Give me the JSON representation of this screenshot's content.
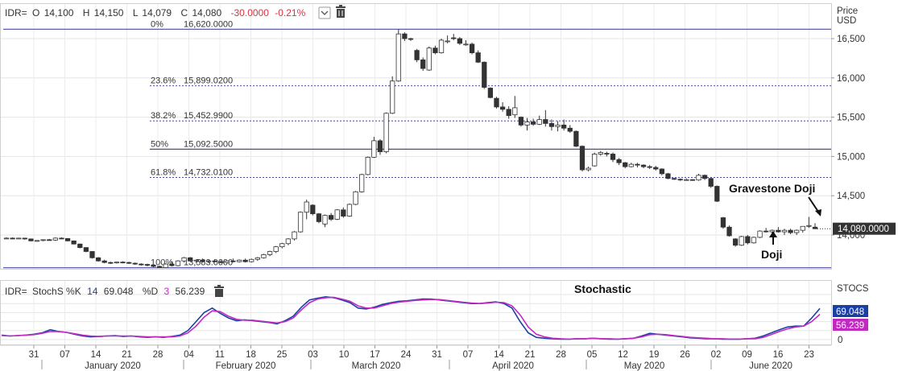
{
  "header": {
    "symbol": "IDR=",
    "o_label": "O",
    "o_value": "14,100",
    "h_label": "H",
    "h_value": "14,150",
    "l_label": "L",
    "l_value": "14,079",
    "c_label": "C",
    "c_value": "14,080",
    "change": "-30.0000",
    "change_pct": "-0.21%"
  },
  "price_axis": {
    "title": "Price",
    "unit": "USD"
  },
  "last_price_label": "14,080.0000",
  "annotations": {
    "gravestone": "Gravestone Doji",
    "doji": "Doji",
    "stochastic": "Stochastic"
  },
  "stoch_header": {
    "symbol": "IDR=",
    "name": "StochS %K",
    "k_period": "14",
    "k_value": "69.048",
    "d_label": "%D",
    "d_period": "3",
    "d_value": "56.239",
    "axis_title": "STOCS"
  },
  "colors": {
    "up": "#ffffff",
    "down": "#333333",
    "fib_line": "#4a4aa0",
    "k_line": "#1a3fa6",
    "d_line": "#c12ac1",
    "neg": "#d9333f"
  },
  "chart_data": [
    {
      "type": "candlestick",
      "title": "",
      "xlabel": "",
      "ylabel": "Price USD",
      "ylim": [
        13400,
        16800
      ],
      "yticks": [
        "16,500",
        "16,000",
        "15,500",
        "15,000",
        "14,500",
        "14,000"
      ],
      "x_day_labels": [
        "31",
        "07",
        "14",
        "21",
        "28",
        "04",
        "11",
        "18",
        "25",
        "03",
        "10",
        "17",
        "24",
        "31",
        "07",
        "14",
        "21",
        "28",
        "05",
        "12",
        "19",
        "26",
        "02",
        "09",
        "16",
        "23"
      ],
      "x_month_labels": [
        "January 2020",
        "February 2020",
        "March 2020",
        "April 2020",
        "May 2020",
        "June 2020"
      ],
      "fibonacci": [
        {
          "label": "0%",
          "value": "16,620.0000",
          "y": 16620
        },
        {
          "label": "23.6%",
          "value": "15,899.0200",
          "y": 15899.02
        },
        {
          "label": "38.2%",
          "value": "15,452.9900",
          "y": 15452.99
        },
        {
          "label": "50%",
          "value": "15,092.5000",
          "y": 15092.5
        },
        {
          "label": "61.8%",
          "value": "14,732.0100",
          "y": 14732.01
        },
        {
          "label": "100%",
          "value": "13,583.0000",
          "y": 13583
        }
      ],
      "last_price": 14080,
      "ohlc": [
        [
          13960,
          13970,
          13950,
          13960
        ],
        [
          13960,
          13970,
          13945,
          13955
        ],
        [
          13955,
          13965,
          13950,
          13960
        ],
        [
          13960,
          13965,
          13940,
          13950
        ],
        [
          13950,
          13955,
          13920,
          13925
        ],
        [
          13925,
          13935,
          13915,
          13930
        ],
        [
          13930,
          13945,
          13920,
          13940
        ],
        [
          13940,
          13950,
          13930,
          13935
        ],
        [
          13935,
          13970,
          13925,
          13960
        ],
        [
          13960,
          13970,
          13945,
          13955
        ],
        [
          13955,
          13960,
          13920,
          13925
        ],
        [
          13925,
          13930,
          13880,
          13885
        ],
        [
          13885,
          13890,
          13830,
          13840
        ],
        [
          13840,
          13845,
          13780,
          13790
        ],
        [
          13790,
          13795,
          13700,
          13710
        ],
        [
          13710,
          13720,
          13660,
          13670
        ],
        [
          13670,
          13685,
          13640,
          13650
        ],
        [
          13650,
          13660,
          13630,
          13645
        ],
        [
          13645,
          13660,
          13635,
          13655
        ],
        [
          13655,
          13665,
          13640,
          13650
        ],
        [
          13650,
          13660,
          13630,
          13640
        ],
        [
          13640,
          13650,
          13620,
          13630
        ],
        [
          13630,
          13640,
          13610,
          13625
        ],
        [
          13625,
          13635,
          13600,
          13615
        ],
        [
          13615,
          13625,
          13590,
          13600
        ],
        [
          13600,
          13610,
          13580,
          13585
        ],
        [
          13585,
          13640,
          13583,
          13630
        ],
        [
          13630,
          13660,
          13600,
          13610
        ],
        [
          13610,
          13680,
          13600,
          13670
        ],
        [
          13670,
          13720,
          13650,
          13710
        ],
        [
          13710,
          13720,
          13660,
          13670
        ],
        [
          13670,
          13690,
          13640,
          13680
        ],
        [
          13680,
          13700,
          13650,
          13660
        ],
        [
          13660,
          13680,
          13640,
          13670
        ],
        [
          13670,
          13690,
          13650,
          13660
        ],
        [
          13660,
          13680,
          13640,
          13650
        ],
        [
          13650,
          13680,
          13640,
          13670
        ],
        [
          13670,
          13700,
          13650,
          13660
        ],
        [
          13660,
          13690,
          13650,
          13680
        ],
        [
          13680,
          13700,
          13650,
          13660
        ],
        [
          13660,
          13700,
          13650,
          13690
        ],
        [
          13690,
          13720,
          13670,
          13710
        ],
        [
          13710,
          13760,
          13700,
          13750
        ],
        [
          13750,
          13800,
          13730,
          13790
        ],
        [
          13790,
          13860,
          13770,
          13850
        ],
        [
          13850,
          13900,
          13830,
          13890
        ],
        [
          13890,
          13960,
          13870,
          13950
        ],
        [
          13950,
          14050,
          13930,
          14040
        ],
        [
          14040,
          14300,
          14030,
          14290
        ],
        [
          14290,
          14450,
          14200,
          14420
        ],
        [
          14380,
          14390,
          14250,
          14270
        ],
        [
          14270,
          14280,
          14150,
          14170
        ],
        [
          14140,
          14260,
          14100,
          14250
        ],
        [
          14250,
          14280,
          14180,
          14200
        ],
        [
          14200,
          14330,
          14190,
          14320
        ],
        [
          14320,
          14350,
          14220,
          14240
        ],
        [
          14240,
          14400,
          14230,
          14390
        ],
        [
          14390,
          14560,
          14380,
          14550
        ],
        [
          14550,
          14780,
          14540,
          14770
        ],
        [
          14770,
          15000,
          14760,
          14990
        ],
        [
          14990,
          15250,
          14980,
          15200
        ],
        [
          15200,
          15220,
          15020,
          15060
        ],
        [
          15060,
          15560,
          15040,
          15550
        ],
        [
          15550,
          16020,
          15540,
          15960
        ],
        [
          15960,
          16620,
          15950,
          16560
        ],
        [
          16560,
          16580,
          16470,
          16500
        ],
        [
          16500,
          16510,
          16470,
          16490
        ],
        [
          16350,
          16370,
          16200,
          16230
        ],
        [
          16230,
          16260,
          16090,
          16120
        ],
        [
          16100,
          16400,
          16090,
          16380
        ],
        [
          16380,
          16410,
          16300,
          16320
        ],
        [
          16320,
          16500,
          16310,
          16480
        ],
        [
          16470,
          16540,
          16440,
          16470
        ],
        [
          16510,
          16560,
          16480,
          16500
        ],
        [
          16500,
          16520,
          16420,
          16440
        ],
        [
          16430,
          16480,
          16410,
          16430
        ],
        [
          16430,
          16450,
          16300,
          16320
        ],
        [
          16320,
          16350,
          16190,
          16200
        ],
        [
          16200,
          16210,
          15860,
          15880
        ],
        [
          15870,
          15880,
          15740,
          15750
        ],
        [
          15740,
          15760,
          15610,
          15630
        ],
        [
          15630,
          15690,
          15570,
          15600
        ],
        [
          15600,
          15640,
          15480,
          15520
        ],
        [
          15530,
          15770,
          15490,
          15620
        ],
        [
          15500,
          15510,
          15380,
          15400
        ],
        [
          15400,
          15490,
          15330,
          15440
        ],
        [
          15440,
          15480,
          15390,
          15410
        ],
        [
          15410,
          15520,
          15400,
          15470
        ],
        [
          15470,
          15590,
          15380,
          15420
        ],
        [
          15420,
          15470,
          15330,
          15380
        ],
        [
          15380,
          15450,
          15320,
          15400
        ],
        [
          15400,
          15470,
          15330,
          15360
        ],
        [
          15360,
          15400,
          15300,
          15320
        ],
        [
          15320,
          15330,
          15120,
          15130
        ],
        [
          15130,
          15140,
          14810,
          14830
        ],
        [
          14830,
          14870,
          14810,
          14850
        ],
        [
          14880,
          15050,
          14870,
          15030
        ],
        [
          15030,
          15070,
          15010,
          15050
        ],
        [
          15040,
          15060,
          15000,
          15030
        ],
        [
          15030,
          15050,
          14930,
          14960
        ],
        [
          14960,
          14980,
          14890,
          14920
        ],
        [
          14920,
          14930,
          14850,
          14870
        ],
        [
          14870,
          14920,
          14860,
          14900
        ],
        [
          14900,
          14920,
          14860,
          14890
        ],
        [
          14890,
          14900,
          14850,
          14870
        ],
        [
          14870,
          14890,
          14840,
          14860
        ],
        [
          14860,
          14880,
          14820,
          14840
        ],
        [
          14840,
          14850,
          14760,
          14780
        ],
        [
          14780,
          14790,
          14710,
          14720
        ],
        [
          14720,
          14730,
          14700,
          14710
        ],
        [
          14710,
          14720,
          14690,
          14700
        ],
        [
          14700,
          14720,
          14690,
          14705
        ],
        [
          14705,
          14710,
          14690,
          14700
        ],
        [
          14700,
          14780,
          14690,
          14760
        ],
        [
          14760,
          14770,
          14700,
          14720
        ],
        [
          14720,
          14730,
          14600,
          14620
        ],
        [
          14620,
          14630,
          14420,
          14430
        ],
        [
          14220,
          14230,
          14080,
          14100
        ],
        [
          14100,
          14120,
          13980,
          13990
        ],
        [
          13950,
          13960,
          13850,
          13870
        ],
        [
          13870,
          13990,
          13860,
          13980
        ],
        [
          13980,
          14000,
          13880,
          13900
        ],
        [
          13900,
          13980,
          13890,
          13970
        ],
        [
          13970,
          14060,
          13960,
          14050
        ],
        [
          14050,
          14090,
          14030,
          14040
        ],
        [
          14040,
          14070,
          14010,
          14060
        ],
        [
          14060,
          14100,
          14030,
          14040
        ],
        [
          14040,
          14080,
          14000,
          14060
        ],
        [
          14060,
          14080,
          14010,
          14030
        ],
        [
          14030,
          14070,
          14000,
          14060
        ],
        [
          14060,
          14100,
          14030,
          14110
        ],
        [
          14110,
          14230,
          14090,
          14120
        ],
        [
          14100,
          14150,
          14079,
          14080
        ]
      ]
    },
    {
      "type": "line",
      "title": "",
      "ylim": [
        0,
        100
      ],
      "yticks": [
        "0"
      ],
      "series": [
        {
          "name": "%K",
          "values": [
            10,
            8,
            9,
            10,
            12,
            15,
            22,
            18,
            16,
            12,
            8,
            6,
            7,
            8,
            9,
            7,
            8,
            6,
            5,
            6,
            5,
            7,
            10,
            20,
            40,
            60,
            70,
            58,
            48,
            42,
            44,
            42,
            40,
            38,
            35,
            42,
            52,
            72,
            88,
            92,
            95,
            93,
            88,
            82,
            70,
            68,
            72,
            78,
            82,
            85,
            86,
            88,
            90,
            90,
            88,
            86,
            84,
            82,
            80,
            80,
            82,
            84,
            80,
            70,
            40,
            15,
            5,
            3,
            2,
            1,
            1,
            2,
            2,
            3,
            2,
            1,
            1,
            2,
            3,
            8,
            14,
            12,
            10,
            8,
            6,
            4,
            3,
            2,
            2,
            1,
            1,
            1,
            2,
            3,
            8,
            15,
            22,
            28,
            30,
            30,
            48,
            69.048
          ]
        },
        {
          "name": "%D",
          "values": [
            9,
            8,
            9,
            10,
            11,
            14,
            18,
            18,
            16,
            13,
            10,
            8,
            7,
            8,
            8,
            8,
            8,
            7,
            6,
            6,
            6,
            6,
            8,
            15,
            30,
            50,
            64,
            62,
            52,
            45,
            43,
            43,
            41,
            39,
            37,
            40,
            48,
            66,
            82,
            90,
            93,
            94,
            90,
            85,
            75,
            70,
            70,
            75,
            80,
            83,
            85,
            87,
            88,
            89,
            89,
            87,
            85,
            83,
            81,
            80,
            81,
            83,
            82,
            75,
            55,
            28,
            12,
            6,
            3,
            2,
            1,
            2,
            2,
            3,
            2,
            2,
            1,
            2,
            3,
            6,
            11,
            12,
            11,
            9,
            7,
            5,
            4,
            3,
            2,
            2,
            1,
            1,
            2,
            2,
            5,
            11,
            18,
            24,
            28,
            30,
            40,
            56.239
          ]
        }
      ]
    }
  ]
}
